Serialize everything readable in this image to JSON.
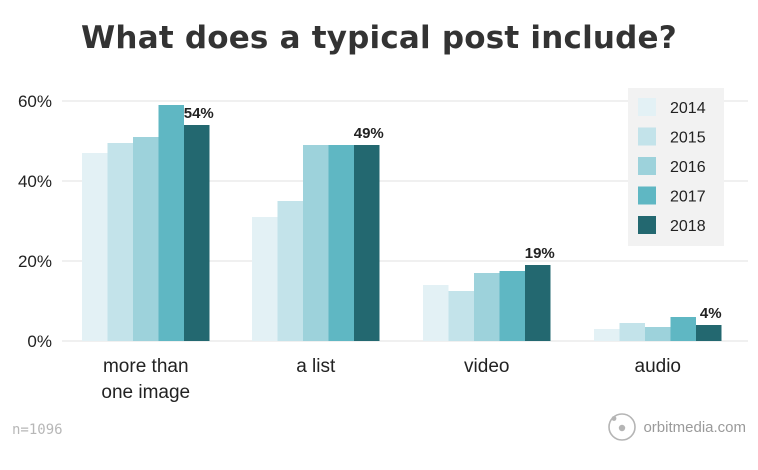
{
  "chart_data": {
    "type": "bar",
    "title": "What does a typical post include?",
    "categories": [
      [
        "more than",
        "one image"
      ],
      [
        "a list"
      ],
      [
        "video"
      ],
      [
        "audio"
      ]
    ],
    "series": [
      {
        "name": "2014",
        "color": "#e3f1f5",
        "values": [
          47,
          31,
          14,
          3
        ]
      },
      {
        "name": "2015",
        "color": "#c3e3ea",
        "values": [
          49.5,
          35,
          12.5,
          4.5
        ]
      },
      {
        "name": "2016",
        "color": "#9dd2db",
        "values": [
          51,
          49,
          17,
          3.5
        ]
      },
      {
        "name": "2017",
        "color": "#5fb7c3",
        "values": [
          59,
          49,
          17.5,
          6
        ]
      },
      {
        "name": "2018",
        "color": "#236870",
        "values": [
          54,
          49,
          19,
          4
        ]
      }
    ],
    "data_labels": [
      "54%",
      "49%",
      "19%",
      "4%"
    ],
    "y_ticks": [
      {
        "value": 0,
        "label": "0%"
      },
      {
        "value": 20,
        "label": "20%"
      },
      {
        "value": 40,
        "label": "40%"
      },
      {
        "value": 60,
        "label": "60%"
      }
    ],
    "ylim": [
      0,
      60
    ],
    "grid": true,
    "legend_position": "top-right"
  },
  "footer": {
    "sample_size": "n=1096",
    "brand": "orbitmedia.com"
  },
  "colors": {
    "title": "#333333",
    "axis_text": "#222222",
    "grid": "#e6e6e6",
    "legend_background": "#f2f2f2"
  },
  "icons": {
    "brand_logo": "orbit-logo-icon"
  }
}
